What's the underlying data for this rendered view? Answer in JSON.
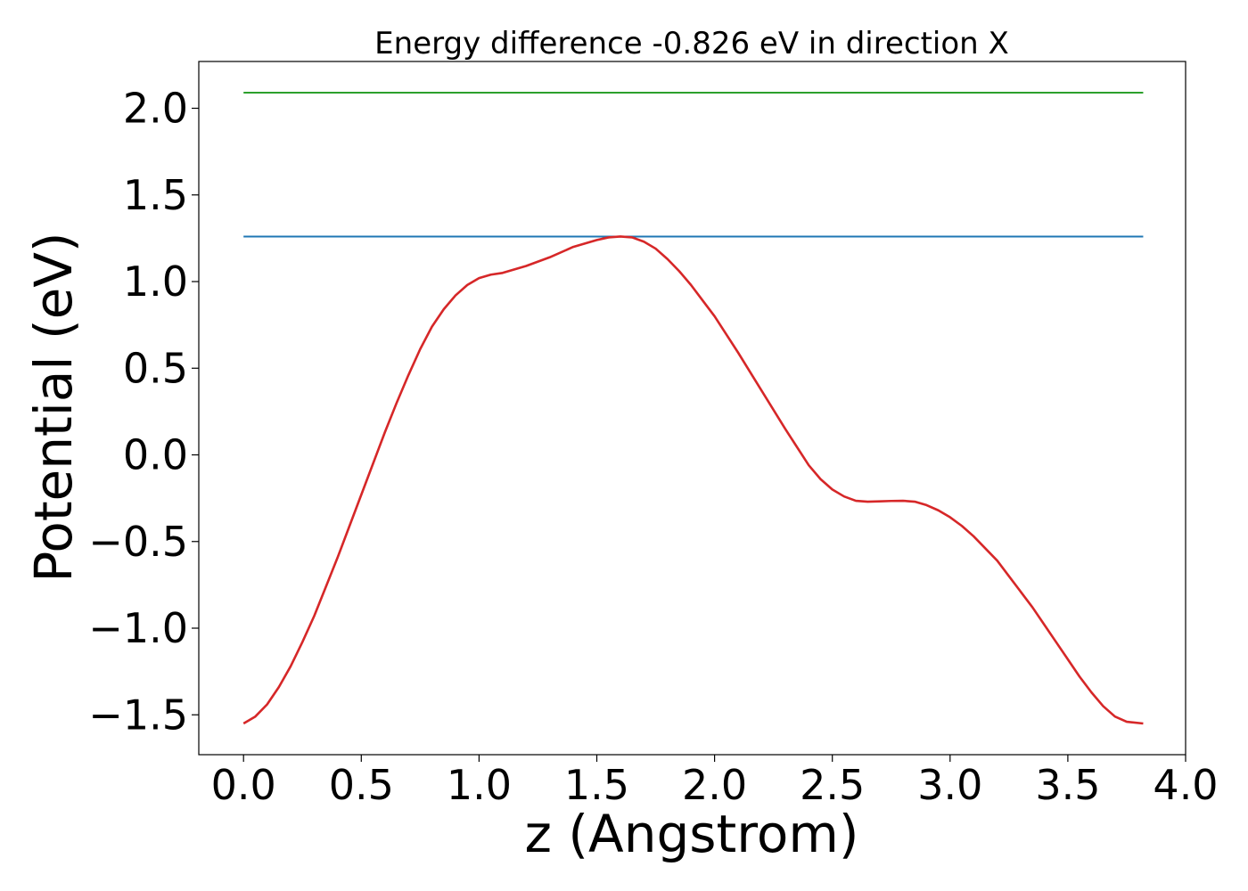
{
  "chart_data": {
    "type": "line",
    "title": "Energy difference -0.826 eV in direction X",
    "xlabel": "z (Angstrom)",
    "ylabel": "Potential (eV)",
    "xlim": [
      -0.19,
      4.0
    ],
    "ylim": [
      -1.73,
      2.27
    ],
    "xticks": [
      "0.0",
      "0.5",
      "1.0",
      "1.5",
      "2.0",
      "2.5",
      "3.0",
      "3.5",
      "4.0"
    ],
    "xtick_values": [
      0.0,
      0.5,
      1.0,
      1.5,
      2.0,
      2.5,
      3.0,
      3.5,
      4.0
    ],
    "yticks": [
      "−1.5",
      "−1.0",
      "−0.5",
      "0.0",
      "0.5",
      "1.0",
      "1.5",
      "2.0"
    ],
    "ytick_values": [
      -1.5,
      -1.0,
      -0.5,
      0.0,
      0.5,
      1.0,
      1.5,
      2.0
    ],
    "grid": false,
    "series": [
      {
        "color": "#2ca02c",
        "x": [
          0.0,
          3.82
        ],
        "y": [
          2.09,
          2.09
        ]
      },
      {
        "color": "#1f77b4",
        "x": [
          0.0,
          3.82
        ],
        "y": [
          1.26,
          1.26
        ]
      },
      {
        "color": "#d62728",
        "x": [
          0.0,
          0.05,
          0.1,
          0.15,
          0.2,
          0.25,
          0.3,
          0.35,
          0.4,
          0.45,
          0.5,
          0.55,
          0.6,
          0.65,
          0.7,
          0.75,
          0.8,
          0.85,
          0.9,
          0.95,
          1.0,
          1.05,
          1.1,
          1.2,
          1.3,
          1.4,
          1.5,
          1.55,
          1.6,
          1.65,
          1.7,
          1.75,
          1.8,
          1.85,
          1.9,
          1.95,
          2.0,
          2.1,
          2.2,
          2.3,
          2.4,
          2.45,
          2.5,
          2.55,
          2.6,
          2.65,
          2.7,
          2.75,
          2.8,
          2.85,
          2.9,
          2.95,
          3.0,
          3.05,
          3.1,
          3.15,
          3.2,
          3.25,
          3.3,
          3.35,
          3.4,
          3.45,
          3.5,
          3.55,
          3.6,
          3.65,
          3.7,
          3.75,
          3.82
        ],
        "y": [
          -1.55,
          -1.51,
          -1.44,
          -1.34,
          -1.22,
          -1.08,
          -0.93,
          -0.76,
          -0.59,
          -0.41,
          -0.23,
          -0.05,
          0.13,
          0.3,
          0.46,
          0.61,
          0.74,
          0.84,
          0.92,
          0.98,
          1.02,
          1.04,
          1.05,
          1.09,
          1.14,
          1.2,
          1.24,
          1.255,
          1.26,
          1.255,
          1.23,
          1.19,
          1.13,
          1.06,
          0.98,
          0.89,
          0.8,
          0.59,
          0.37,
          0.15,
          -0.06,
          -0.14,
          -0.2,
          -0.24,
          -0.265,
          -0.27,
          -0.268,
          -0.266,
          -0.265,
          -0.27,
          -0.29,
          -0.32,
          -0.36,
          -0.41,
          -0.47,
          -0.54,
          -0.61,
          -0.7,
          -0.79,
          -0.88,
          -0.98,
          -1.08,
          -1.18,
          -1.28,
          -1.37,
          -1.45,
          -1.51,
          -1.54,
          -1.55
        ]
      }
    ]
  }
}
